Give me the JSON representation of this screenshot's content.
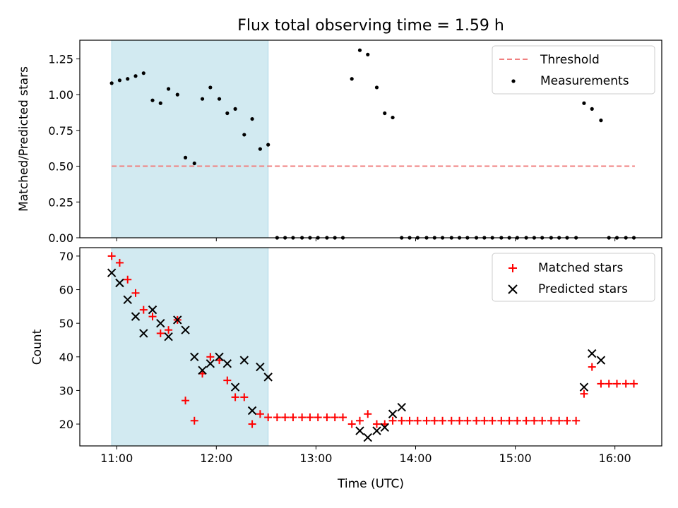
{
  "chart_data": {
    "title": "Flux total observing time = 1.59 h",
    "xlabel": "Time (UTC)",
    "x_unit": "hours (UTC)",
    "xlim": [
      10.63,
      16.47
    ],
    "xticks": [
      11,
      12,
      13,
      14,
      15,
      16
    ],
    "xtick_labels": [
      "11:00",
      "12:00",
      "13:00",
      "14:00",
      "15:00",
      "16:00"
    ],
    "highlight_span": [
      10.95,
      12.52
    ],
    "colors": {
      "span": "#add8e6",
      "threshold": "#f08080",
      "matched": "#ff0000",
      "predicted": "#000000",
      "measurement": "#000000"
    },
    "panels": [
      {
        "type": "scatter",
        "ylabel": "Matched/Predicted stars",
        "ylim": [
          0,
          1.38
        ],
        "yticks": [
          0.0,
          0.25,
          0.5,
          0.75,
          1.0,
          1.25
        ],
        "ytick_labels": [
          "0.00",
          "0.25",
          "0.50",
          "0.75",
          "1.00",
          "1.25"
        ],
        "legend": [
          "Threshold",
          "Measurements"
        ],
        "legend_loc": "upper right",
        "threshold": {
          "y": 0.5,
          "x_range": [
            10.95,
            16.2
          ]
        },
        "series": [
          {
            "name": "Measurements",
            "x": [
              10.95,
              11.03,
              11.11,
              11.19,
              11.27,
              11.36,
              11.44,
              11.52,
              11.61,
              11.69,
              11.78,
              11.86,
              11.94,
              12.03,
              12.11,
              12.19,
              12.28,
              12.36,
              12.44,
              12.52,
              12.61,
              12.69,
              12.77,
              12.86,
              12.94,
              13.02,
              13.11,
              13.19,
              13.27,
              13.36,
              13.44,
              13.52,
              13.61,
              13.69,
              13.77,
              13.86,
              13.94,
              14.02,
              14.11,
              14.19,
              14.27,
              14.36,
              14.44,
              14.52,
              14.61,
              14.69,
              14.77,
              14.86,
              14.94,
              15.02,
              15.11,
              15.19,
              15.27,
              15.36,
              15.44,
              15.52,
              15.61,
              15.69,
              15.77,
              15.86,
              15.94,
              16.02,
              16.11,
              16.19
            ],
            "y": [
              1.08,
              1.1,
              1.11,
              1.13,
              1.15,
              0.96,
              0.94,
              1.04,
              1.0,
              0.56,
              0.52,
              0.97,
              1.05,
              0.97,
              0.87,
              0.9,
              0.72,
              0.83,
              0.62,
              0.65,
              0.0,
              0.0,
              0.0,
              0.0,
              0.0,
              0.0,
              0.0,
              0.0,
              0.0,
              1.11,
              1.31,
              1.28,
              1.05,
              0.87,
              0.84,
              0.0,
              0.0,
              0.0,
              0.0,
              0.0,
              0.0,
              0.0,
              0.0,
              0.0,
              0.0,
              0.0,
              0.0,
              0.0,
              0.0,
              0.0,
              0.0,
              0.0,
              0.0,
              0.0,
              0.0,
              0.0,
              0.0,
              0.94,
              0.9,
              0.82,
              0.0,
              0.0,
              0.0,
              0.0
            ]
          }
        ]
      },
      {
        "type": "scatter",
        "ylabel": "Count",
        "ylim": [
          13.5,
          72.5
        ],
        "yticks": [
          20,
          30,
          40,
          50,
          60,
          70
        ],
        "ytick_labels": [
          "20",
          "30",
          "40",
          "50",
          "60",
          "70"
        ],
        "legend": [
          "Matched stars",
          "Predicted stars"
        ],
        "legend_loc": "upper right",
        "series": [
          {
            "name": "Matched stars",
            "x": [
              10.95,
              11.03,
              11.11,
              11.19,
              11.27,
              11.36,
              11.44,
              11.52,
              11.61,
              11.69,
              11.78,
              11.86,
              11.94,
              12.03,
              12.11,
              12.19,
              12.28,
              12.36,
              12.44,
              12.52,
              12.61,
              12.69,
              12.77,
              12.86,
              12.94,
              13.02,
              13.11,
              13.19,
              13.27,
              13.36,
              13.44,
              13.52,
              13.61,
              13.69,
              13.77,
              13.86,
              13.94,
              14.02,
              14.11,
              14.19,
              14.27,
              14.36,
              14.44,
              14.52,
              14.61,
              14.69,
              14.77,
              14.86,
              14.94,
              15.02,
              15.11,
              15.19,
              15.27,
              15.36,
              15.44,
              15.52,
              15.61,
              15.69,
              15.77,
              15.86,
              15.94,
              16.02,
              16.11,
              16.19
            ],
            "y": [
              70,
              68,
              63,
              59,
              54,
              52,
              47,
              48,
              51,
              27,
              21,
              35,
              40,
              39,
              33,
              28,
              28,
              20,
              23,
              22,
              22,
              22,
              22,
              22,
              22,
              22,
              22,
              22,
              22,
              20,
              21,
              23,
              20,
              20,
              21,
              21,
              21,
              21,
              21,
              21,
              21,
              21,
              21,
              21,
              21,
              21,
              21,
              21,
              21,
              21,
              21,
              21,
              21,
              21,
              21,
              21,
              21,
              29,
              37,
              32,
              32,
              32,
              32,
              32
            ]
          },
          {
            "name": "Predicted stars",
            "x": [
              10.95,
              11.03,
              11.11,
              11.19,
              11.27,
              11.36,
              11.44,
              11.52,
              11.61,
              11.69,
              11.78,
              11.86,
              11.94,
              12.03,
              12.11,
              12.19,
              12.28,
              12.36,
              12.44,
              12.52,
              13.44,
              13.52,
              13.61,
              13.69,
              13.77,
              13.86,
              15.69,
              15.77,
              15.86
            ],
            "y": [
              65,
              62,
              57,
              52,
              47,
              54,
              50,
              46,
              51,
              48,
              40,
              36,
              38,
              40,
              38,
              31,
              39,
              24,
              37,
              34,
              18,
              16,
              18,
              19,
              23,
              25,
              31,
              41,
              39
            ]
          }
        ]
      }
    ]
  }
}
